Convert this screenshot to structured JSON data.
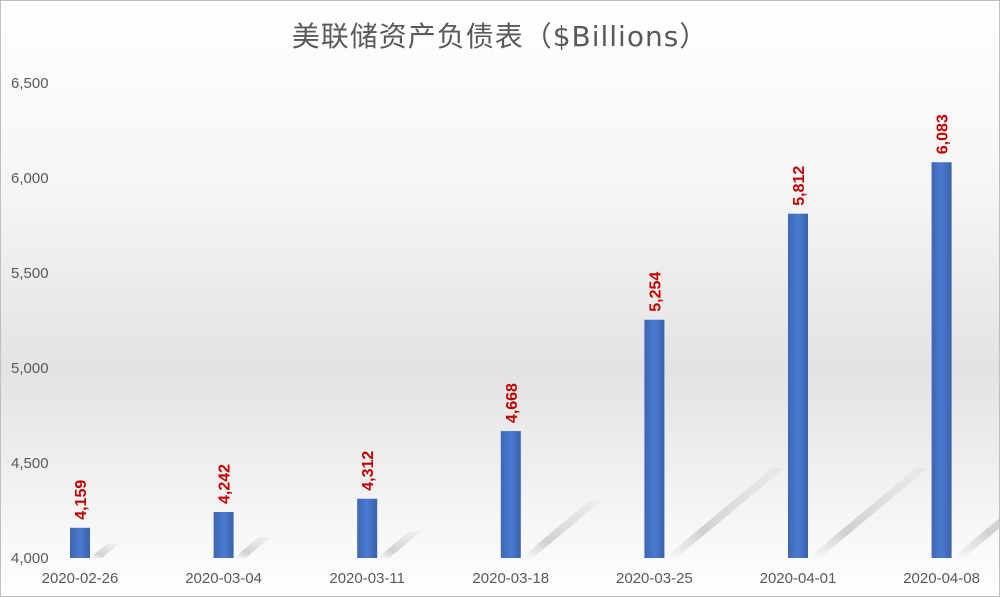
{
  "chart_data": {
    "type": "bar",
    "title": "美联储资产负债表（$Billions）",
    "categories": [
      "2020-02-26",
      "2020-03-04",
      "2020-03-11",
      "2020-03-18",
      "2020-03-25",
      "2020-04-01",
      "2020-04-08"
    ],
    "series": [
      {
        "values": [
          4159,
          4242,
          4312,
          4668,
          5254,
          5812,
          6083
        ]
      }
    ],
    "data_labels": [
      "4,159",
      "4,242",
      "4,312",
      "4,668",
      "5,254",
      "5,812",
      "6,083"
    ],
    "y_tick_labels": [
      "4,000",
      "4,500",
      "5,000",
      "5,500",
      "6,000",
      "6,500"
    ],
    "y_ticks": [
      4000,
      4500,
      5000,
      5500,
      6000,
      6500
    ],
    "ylim": [
      4000,
      6500
    ],
    "xlabel": "",
    "ylabel": "",
    "grid": false,
    "legend": "none",
    "bar_color": "#4472c4",
    "data_label_color": "#c00000"
  }
}
